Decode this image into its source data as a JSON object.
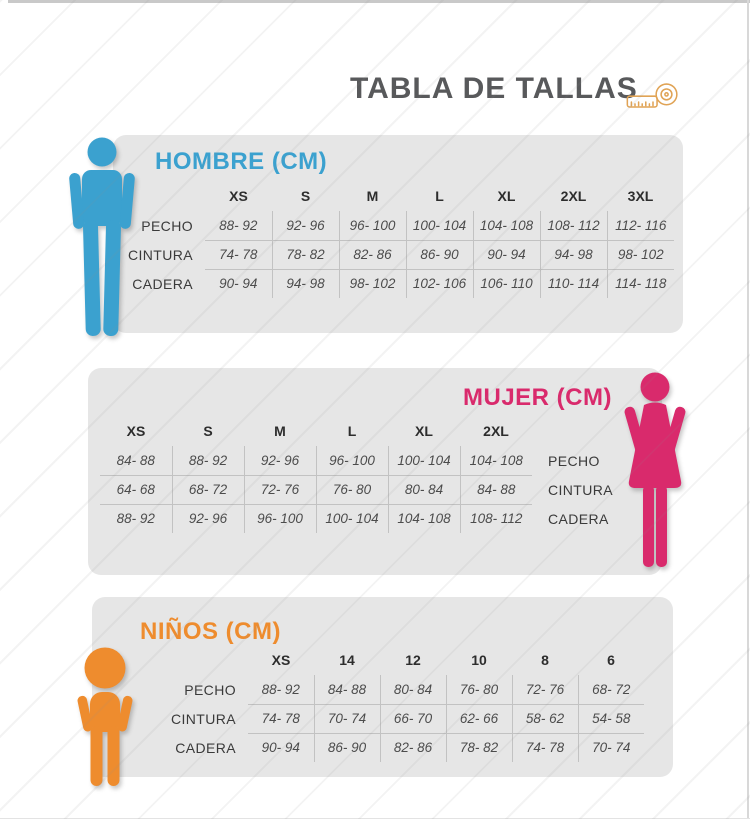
{
  "page": {
    "title": "TABLA DE TALLAS"
  },
  "colors": {
    "heading": "#58595b",
    "men": "#3ba1cf",
    "women": "#d92a6c",
    "kids": "#ee8c2e",
    "panel": "#e6e6e6",
    "tape": "#e0a355",
    "grid": "#c2c2c2"
  },
  "sections": {
    "men": {
      "title": "HOMBRE (CM)",
      "sizes": [
        "XS",
        "S",
        "M",
        "L",
        "XL",
        "2XL",
        "3XL"
      ],
      "rows": [
        {
          "label": "PECHO",
          "values": [
            "88- 92",
            "92- 96",
            "96- 100",
            "100- 104",
            "104- 108",
            "108- 112",
            "112- 116"
          ]
        },
        {
          "label": "CINTURA",
          "values": [
            "74- 78",
            "78- 82",
            "82- 86",
            "86- 90",
            "90- 94",
            "94- 98",
            "98- 102"
          ]
        },
        {
          "label": "CADERA",
          "values": [
            "90- 94",
            "94- 98",
            "98- 102",
            "102- 106",
            "106- 110",
            "110- 114",
            "114- 118"
          ]
        }
      ]
    },
    "women": {
      "title": "MUJER (CM)",
      "sizes": [
        "XS",
        "S",
        "M",
        "L",
        "XL",
        "2XL"
      ],
      "rows": [
        {
          "label": "PECHO",
          "values": [
            "84- 88",
            "88- 92",
            "92- 96",
            "96- 100",
            "100- 104",
            "104- 108"
          ]
        },
        {
          "label": "CINTURA",
          "values": [
            "64- 68",
            "68- 72",
            "72- 76",
            "76- 80",
            "80- 84",
            "84- 88"
          ]
        },
        {
          "label": "CADERA",
          "values": [
            "88- 92",
            "92- 96",
            "96- 100",
            "100- 104",
            "104- 108",
            "108- 112"
          ]
        }
      ]
    },
    "kids": {
      "title": "NIÑOS (CM)",
      "sizes": [
        "XS",
        "14",
        "12",
        "10",
        "8",
        "6"
      ],
      "rows": [
        {
          "label": "PECHO",
          "values": [
            "88- 92",
            "84- 88",
            "80- 84",
            "76- 80",
            "72- 76",
            "68- 72"
          ]
        },
        {
          "label": "CINTURA",
          "values": [
            "74- 78",
            "70- 74",
            "66- 70",
            "62- 66",
            "58- 62",
            "54- 58"
          ]
        },
        {
          "label": "CADERA",
          "values": [
            "90- 94",
            "86- 90",
            "82- 86",
            "78- 82",
            "74- 78",
            "70- 74"
          ]
        }
      ]
    }
  }
}
